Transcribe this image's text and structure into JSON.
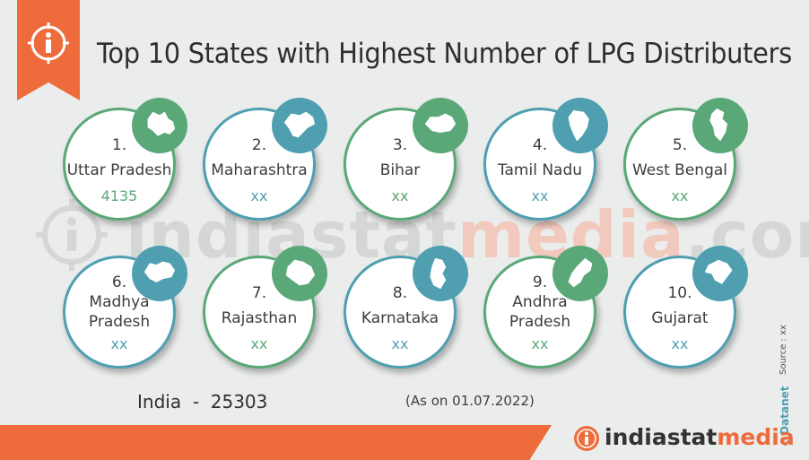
{
  "header": {
    "title": "Top 10 States with Highest Number of LPG Distributers",
    "badge_icon": "info-icon"
  },
  "watermark": {
    "part1": "indiastat",
    "part2": "media",
    "part3": ".com"
  },
  "states": [
    {
      "rank": "1.",
      "line1": "Uttar Pradesh",
      "line2": "",
      "value": "4135",
      "theme": "green"
    },
    {
      "rank": "2.",
      "line1": "Maharashtra",
      "line2": "",
      "value": "xx",
      "theme": "blue"
    },
    {
      "rank": "3.",
      "line1": "Bihar",
      "line2": "",
      "value": "xx",
      "theme": "green"
    },
    {
      "rank": "4.",
      "line1": "Tamil Nadu",
      "line2": "",
      "value": "xx",
      "theme": "blue"
    },
    {
      "rank": "5.",
      "line1": "West Bengal",
      "line2": "",
      "value": "xx",
      "theme": "green"
    },
    {
      "rank": "6.",
      "line1": "Madhya",
      "line2": "Pradesh",
      "value": "xx",
      "theme": "blue"
    },
    {
      "rank": "7.",
      "line1": "Rajasthan",
      "line2": "",
      "value": "xx",
      "theme": "green"
    },
    {
      "rank": "8.",
      "line1": "Karnataka",
      "line2": "",
      "value": "xx",
      "theme": "blue"
    },
    {
      "rank": "9.",
      "line1": "Andhra",
      "line2": "Pradesh",
      "value": "xx",
      "theme": "green"
    },
    {
      "rank": "10.",
      "line1": "Gujarat",
      "line2": "",
      "value": "xx",
      "theme": "blue"
    }
  ],
  "summary": {
    "india_label": "India",
    "separator": "-",
    "india_value": "25303",
    "as_on": "(As on 01.07.2022)"
  },
  "source": {
    "copyright": "©",
    "brand": "Datanet",
    "source_text": "Source : xx"
  },
  "footer": {
    "logo_part1": "indiastat",
    "logo_part2": "media"
  },
  "colors": {
    "orange": "#ee6b3b",
    "green": "#5aa878",
    "blue": "#4f9fb1"
  }
}
